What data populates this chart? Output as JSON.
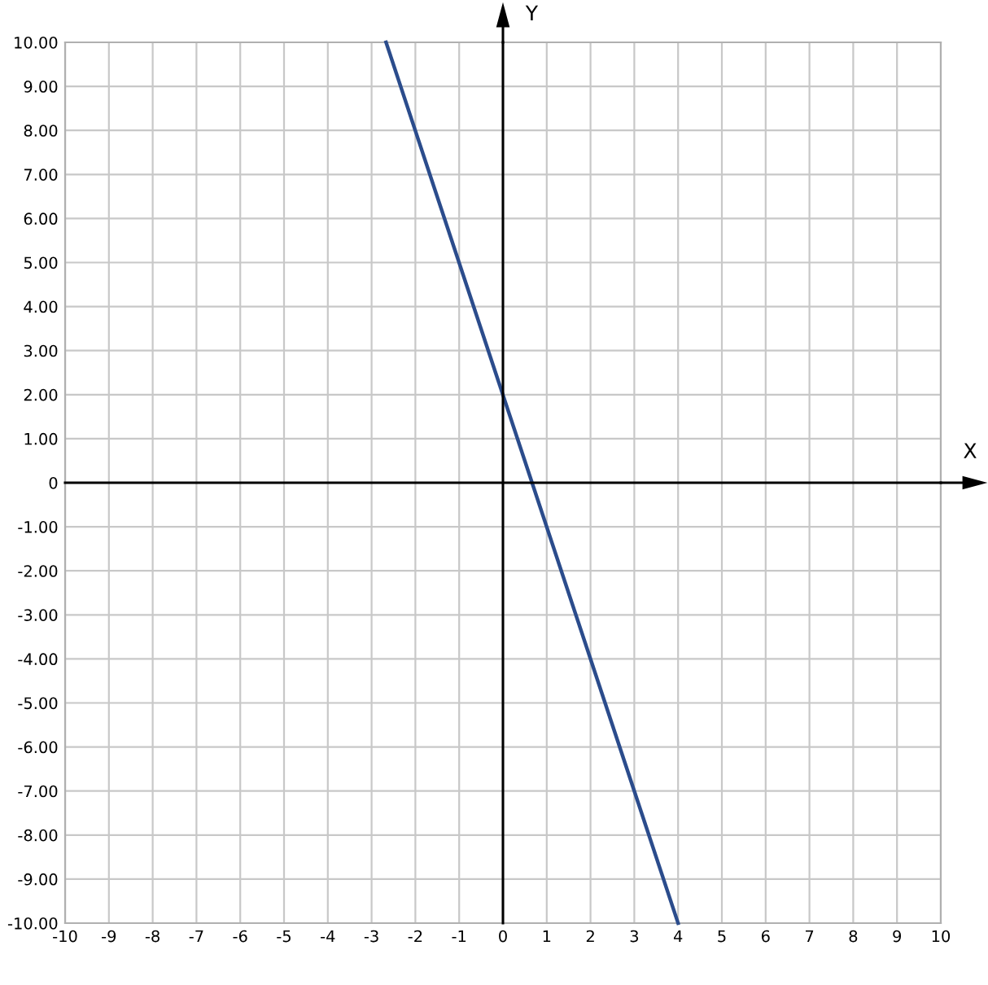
{
  "chart_data": {
    "type": "line",
    "xlabel": "X",
    "ylabel": "Y",
    "series": [
      {
        "color": "#2b4c8c",
        "x": [
          -2.67,
          4
        ],
        "values": [
          10,
          -10
        ]
      }
    ],
    "xlim": [
      -10,
      10
    ],
    "ylim": [
      -10,
      10
    ],
    "xticks": [
      -10,
      -9,
      -8,
      -7,
      -6,
      -5,
      -4,
      -3,
      -2,
      -1,
      0,
      1,
      2,
      3,
      4,
      5,
      6,
      7,
      8,
      9,
      10
    ],
    "yticks": [
      {
        "value": -10,
        "label": "-10.00"
      },
      {
        "value": -9,
        "label": "-9.00"
      },
      {
        "value": -8,
        "label": "-8.00"
      },
      {
        "value": -7,
        "label": "-7.00"
      },
      {
        "value": -6,
        "label": "-6.00"
      },
      {
        "value": -5,
        "label": "-5.00"
      },
      {
        "value": -4,
        "label": "-4.00"
      },
      {
        "value": -3,
        "label": "-3.00"
      },
      {
        "value": -2,
        "label": "-2.00"
      },
      {
        "value": -1,
        "label": "-1.00"
      },
      0,
      {
        "value": 1,
        "label": "1.00"
      },
      {
        "value": 2,
        "label": "2.00"
      },
      {
        "value": 3,
        "label": "3.00"
      },
      {
        "value": 4,
        "label": "4.00"
      },
      {
        "value": 5,
        "label": "5.00"
      },
      {
        "value": 6,
        "label": "6.00"
      },
      {
        "value": 7,
        "label": "7.00"
      },
      {
        "value": 8,
        "label": "8.00"
      },
      {
        "value": 9,
        "label": "9.00"
      },
      {
        "value": 10,
        "label": "10.00"
      }
    ],
    "grid": true,
    "marker": "none",
    "line_style": "solid"
  }
}
